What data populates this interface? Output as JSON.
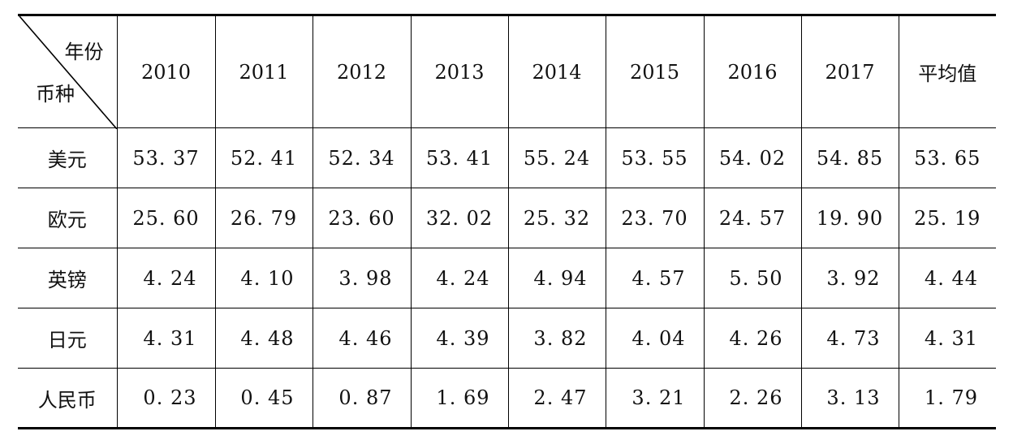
{
  "table": {
    "corner_top": "年份",
    "corner_bottom": "币种",
    "columns": [
      "2010",
      "2011",
      "2012",
      "2013",
      "2014",
      "2015",
      "2016",
      "2017",
      "平均值"
    ],
    "rows": [
      {
        "label": "美元",
        "values": [
          "53. 37",
          "52. 41",
          "52. 34",
          "53. 41",
          "55. 24",
          "53. 55",
          "54. 02",
          "54. 85",
          "53. 65"
        ]
      },
      {
        "label": "欧元",
        "values": [
          "25. 60",
          "26. 79",
          "23. 60",
          "32. 02",
          "25. 32",
          "23. 70",
          "24. 57",
          "19. 90",
          "25. 19"
        ]
      },
      {
        "label": "英镑",
        "values": [
          "4. 24",
          "4. 10",
          "3. 98",
          "4. 24",
          "4. 94",
          "4. 57",
          "5. 50",
          "3. 92",
          "4. 44"
        ]
      },
      {
        "label": "日元",
        "values": [
          "4. 31",
          "4. 48",
          "4. 46",
          "4. 39",
          "3. 82",
          "4. 04",
          "4. 26",
          "4. 73",
          "4. 31"
        ]
      },
      {
        "label": "人民币",
        "values": [
          "0. 23",
          "0. 45",
          "0. 87",
          "1. 69",
          "2. 47",
          "3. 21",
          "2. 26",
          "3. 13",
          "1. 79"
        ]
      }
    ]
  }
}
